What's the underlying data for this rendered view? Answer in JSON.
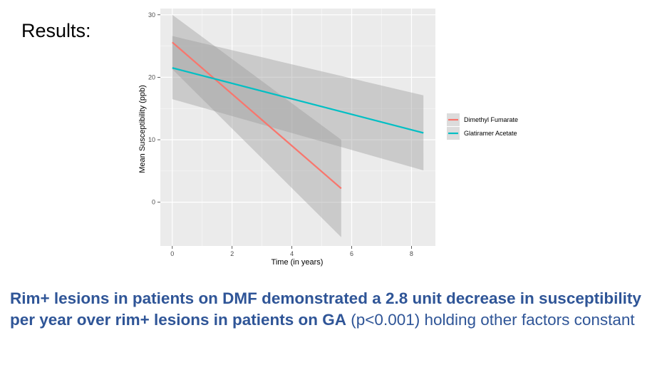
{
  "slide": {
    "heading": "Results:",
    "conclusion_bold": "Rim+ lesions in patients on DMF demonstrated a 2.8 unit decrease in susceptibility per year over rim+ lesions in patients on GA",
    "conclusion_normal": " (p<0.001) holding other factors constant"
  },
  "colors": {
    "dmf": "#f8766d",
    "ga": "#00bfc4",
    "panel": "#ebebeb",
    "ribbon": "#999999",
    "conclusion_text": "#2f5597"
  },
  "chart_data": {
    "type": "line",
    "title": "",
    "xlabel": "Time (in years)",
    "ylabel": "Mean Susceptibility (ppb)",
    "xlim": [
      -0.4,
      8.8
    ],
    "ylim": [
      -7,
      31
    ],
    "x_ticks": [
      0,
      2,
      4,
      6,
      8
    ],
    "y_ticks": [
      0,
      10,
      20,
      30
    ],
    "legend_position": "right",
    "series": [
      {
        "name": "Dimethyl Fumarate",
        "color": "#f8766d",
        "x": [
          0,
          5.65
        ],
        "y": [
          25.6,
          2.2
        ],
        "ribbon": {
          "x": [
            0,
            5.65
          ],
          "lower": [
            21.3,
            -5.6
          ],
          "upper": [
            30.0,
            10.0
          ]
        }
      },
      {
        "name": "Glatiramer Acetate",
        "color": "#00bfc4",
        "x": [
          0,
          8.4
        ],
        "y": [
          21.5,
          11.1
        ],
        "ribbon": {
          "x": [
            0,
            8.4
          ],
          "lower": [
            16.5,
            5.1
          ],
          "upper": [
            26.6,
            17.1
          ]
        }
      }
    ]
  }
}
